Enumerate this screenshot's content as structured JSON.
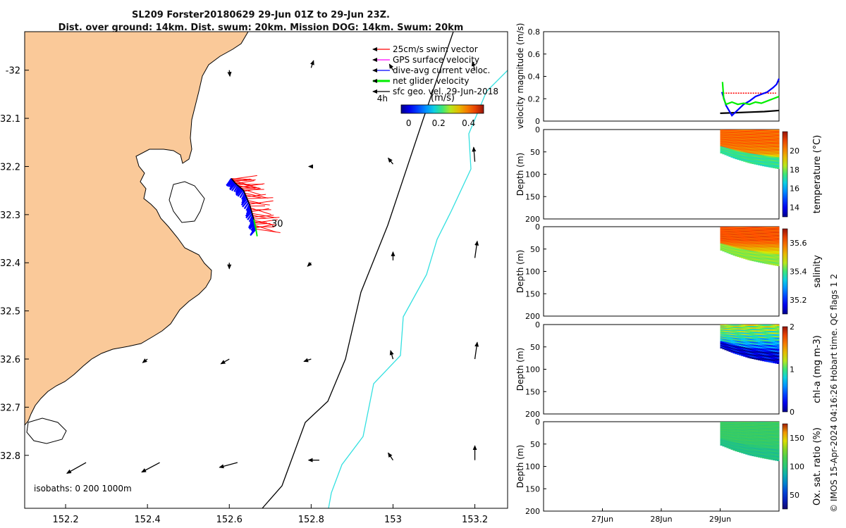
{
  "title": {
    "line1": "SL209 Forster20180629 29-Jun 01Z to 29-Jun 23Z.",
    "line2": "Dist. over ground: 14km. Dist. swum: 20km. Mission DOG: 14km. Swum: 20km"
  },
  "credit": "© IMOS 15-Apr-2024 04:16:26 Hobart time. QC flags 1  2",
  "colors": {
    "land": "#fac999",
    "swim_vector": "#ff0000",
    "gps_velocity": "#ff00ff",
    "current": "#0000ff",
    "net_velocity": "#00ee00",
    "geo_velocity": "#000000",
    "isobath_200": "#000000",
    "isobath_1000": "#33e0e0"
  },
  "chart_data": [
    {
      "id": "map",
      "type": "map",
      "xlim": [
        152.1,
        153.28
      ],
      "ylim": [
        -32.91,
        -31.92
      ],
      "x_ticks": [
        "152.2",
        "152.4",
        "152.6",
        "152.8",
        "153",
        "153.2"
      ],
      "x_tick_values": [
        152.2,
        152.4,
        152.6,
        152.8,
        153.0,
        153.2
      ],
      "y_ticks": [
        "-32",
        "32.1",
        "32.2",
        "32.3",
        "32.4",
        "32.5",
        "32.6",
        "32.7",
        "32.8"
      ],
      "y_tick_values": [
        -32.0,
        -32.1,
        -32.2,
        -32.3,
        -32.4,
        -32.5,
        -32.6,
        -32.7,
        -32.8
      ],
      "legend": [
        {
          "label": "25cm/s swim vector",
          "color": "#ff0000"
        },
        {
          "label": "GPS surface velocity",
          "color": "#ff00ff"
        },
        {
          "label": "dive-avg current veloc.",
          "color": "#0000ff"
        },
        {
          "label": "net glider velocity",
          "color": "#00ee00"
        },
        {
          "label": "sfc geo. vel. 29-Jun-2018",
          "color": "#000000"
        }
      ],
      "duration_label": "4h",
      "colorbar_unit": "(m/s)",
      "colorbar_ticks": [
        "0",
        "0.2",
        "0.4"
      ],
      "colorbar_tick_values": [
        0,
        0.2,
        0.4
      ],
      "colorbar_range": [
        -0.05,
        0.5
      ],
      "annotation": "30",
      "isobaths_label": "isobaths: 0   200  1000m",
      "track": [
        [
          152.605,
          -32.225
        ],
        [
          152.615,
          -32.235
        ],
        [
          152.635,
          -32.25
        ],
        [
          152.65,
          -32.28
        ],
        [
          152.66,
          -32.31
        ],
        [
          152.665,
          -32.33
        ]
      ],
      "geo_arrows": [
        {
          "lon": 152.6,
          "lat": -32.0,
          "u": 0.005,
          "v": -0.05
        },
        {
          "lon": 152.8,
          "lat": -31.995,
          "u": 0.02,
          "v": 0.06
        },
        {
          "lon": 153.0,
          "lat": -32.0,
          "u": -0.03,
          "v": 0.05
        },
        {
          "lon": 153.2,
          "lat": -32.0,
          "u": -0.02,
          "v": 0.07
        },
        {
          "lon": 152.8,
          "lat": -32.2,
          "u": -0.02,
          "v": 0.0
        },
        {
          "lon": 153.0,
          "lat": -32.195,
          "u": -0.04,
          "v": 0.05
        },
        {
          "lon": 153.2,
          "lat": -32.19,
          "u": -0.01,
          "v": 0.12
        },
        {
          "lon": 152.6,
          "lat": -32.4,
          "u": 0.0,
          "v": -0.05
        },
        {
          "lon": 152.8,
          "lat": -32.4,
          "u": -0.03,
          "v": -0.03
        },
        {
          "lon": 153.0,
          "lat": -32.395,
          "u": 0.0,
          "v": 0.07
        },
        {
          "lon": 153.2,
          "lat": -32.39,
          "u": 0.02,
          "v": 0.14
        },
        {
          "lon": 152.4,
          "lat": -32.6,
          "u": -0.04,
          "v": -0.03
        },
        {
          "lon": 152.6,
          "lat": -32.6,
          "u": -0.07,
          "v": -0.04
        },
        {
          "lon": 152.8,
          "lat": -32.6,
          "u": -0.06,
          "v": -0.02
        },
        {
          "lon": 153.0,
          "lat": -32.6,
          "u": -0.02,
          "v": 0.07
        },
        {
          "lon": 153.2,
          "lat": -32.6,
          "u": 0.02,
          "v": 0.14
        },
        {
          "lon": 152.25,
          "lat": -32.815,
          "u": -0.16,
          "v": -0.09
        },
        {
          "lon": 152.43,
          "lat": -32.815,
          "u": -0.15,
          "v": -0.08
        },
        {
          "lon": 152.62,
          "lat": -32.815,
          "u": -0.15,
          "v": -0.04
        },
        {
          "lon": 152.82,
          "lat": -32.81,
          "u": -0.09,
          "v": 0.0
        },
        {
          "lon": 153.0,
          "lat": -32.81,
          "u": -0.04,
          "v": 0.06
        },
        {
          "lon": 153.2,
          "lat": -32.81,
          "u": 0.0,
          "v": 0.12
        }
      ]
    },
    {
      "id": "velocity",
      "type": "line",
      "ylabel": "velocity magnitude (m/s)",
      "ylim": [
        0,
        0.8
      ],
      "y_ticks": [
        "0",
        "0.2",
        "0.4",
        "0.6",
        "0.8"
      ],
      "y_tick_values": [
        0,
        0.2,
        0.4,
        0.6,
        0.8
      ],
      "xlim": [
        26.0,
        30.0
      ],
      "series": [
        {
          "color": "#000000",
          "dashed": false,
          "x": [
            29.0,
            29.25,
            29.5,
            29.75,
            30.0
          ],
          "y": [
            0.07,
            0.075,
            0.08,
            0.085,
            0.095
          ]
        },
        {
          "color": "#ff0000",
          "dashed": true,
          "x": [
            29.05,
            29.3,
            29.5,
            29.75,
            29.95
          ],
          "y": [
            0.25,
            0.25,
            0.25,
            0.25,
            0.25
          ]
        },
        {
          "color": "#0000ff",
          "dashed": false,
          "x": [
            29.03,
            29.1,
            29.2,
            29.3,
            29.4,
            29.5,
            29.6,
            29.7,
            29.8,
            29.9,
            29.96,
            30.0
          ],
          "y": [
            0.26,
            0.14,
            0.05,
            0.1,
            0.15,
            0.18,
            0.22,
            0.24,
            0.26,
            0.3,
            0.33,
            0.38
          ]
        },
        {
          "color": "#00ee00",
          "dashed": false,
          "x": [
            29.04,
            29.06,
            29.1,
            29.2,
            29.3,
            29.4,
            29.5,
            29.6,
            29.7,
            29.8,
            29.9,
            30.0
          ],
          "y": [
            0.35,
            0.2,
            0.15,
            0.17,
            0.15,
            0.16,
            0.15,
            0.17,
            0.16,
            0.18,
            0.2,
            0.22
          ]
        }
      ]
    },
    {
      "id": "temperature",
      "type": "heatmap",
      "ylabel": "Depth (m)",
      "y_ticks": [
        "0",
        "50",
        "100",
        "150",
        "200"
      ],
      "y_tick_values": [
        0,
        50,
        100,
        150,
        200
      ],
      "ylim": [
        0,
        200
      ],
      "colorbar_label": "temperature (°C)",
      "colorbar_ticks": [
        "14",
        "16",
        "18",
        "20"
      ],
      "colorbar_tick_values": [
        14,
        16,
        18,
        20
      ],
      "colorbar_range": [
        13,
        22
      ],
      "x_span": [
        29.0,
        30.0
      ],
      "top_value": 20.5,
      "upper_profile": [
        [
          0,
          20.5
        ],
        [
          30,
          20.5
        ],
        [
          50,
          20.0
        ],
        [
          65,
          18.5
        ],
        [
          80,
          17.5
        ],
        [
          95,
          17.0
        ]
      ],
      "bottom_depth": [
        [
          29.0,
          52
        ],
        [
          29.25,
          65
        ],
        [
          29.5,
          75
        ],
        [
          29.75,
          82
        ],
        [
          30.0,
          88
        ]
      ]
    },
    {
      "id": "salinity",
      "type": "heatmap",
      "ylabel": "Depth (m)",
      "y_ticks": [
        "0",
        "50",
        "100",
        "150",
        "200"
      ],
      "y_tick_values": [
        0,
        50,
        100,
        150,
        200
      ],
      "ylim": [
        0,
        200
      ],
      "colorbar_label": "salinity",
      "colorbar_ticks": [
        "35.2",
        "35.4",
        "35.6"
      ],
      "colorbar_tick_values": [
        35.2,
        35.4,
        35.6
      ],
      "colorbar_range": [
        35.1,
        35.7
      ],
      "x_span": [
        29.0,
        30.0
      ],
      "upper_profile": [
        [
          0,
          35.62
        ],
        [
          30,
          35.62
        ],
        [
          40,
          35.58
        ],
        [
          55,
          35.5
        ],
        [
          70,
          35.45
        ],
        [
          95,
          35.43
        ]
      ],
      "bottom_depth": [
        [
          29.0,
          52
        ],
        [
          29.25,
          65
        ],
        [
          29.5,
          75
        ],
        [
          29.75,
          82
        ],
        [
          30.0,
          88
        ]
      ]
    },
    {
      "id": "chla",
      "type": "heatmap",
      "ylabel": "Depth (m)",
      "y_ticks": [
        "0",
        "50",
        "100",
        "150",
        "200"
      ],
      "y_tick_values": [
        0,
        50,
        100,
        150,
        200
      ],
      "ylim": [
        0,
        200
      ],
      "colorbar_label": "chl-a (mg m-3)",
      "colorbar_ticks": [
        "0",
        "1",
        "2"
      ],
      "colorbar_tick_values": [
        0,
        1,
        2
      ],
      "colorbar_range": [
        0,
        2
      ],
      "x_span": [
        29.0,
        30.0
      ],
      "upper_profile": [
        [
          0,
          1.2
        ],
        [
          20,
          1.0
        ],
        [
          35,
          0.8
        ],
        [
          50,
          0.5
        ],
        [
          65,
          0.2
        ],
        [
          95,
          0.1
        ]
      ],
      "bottom_depth": [
        [
          29.0,
          52
        ],
        [
          29.25,
          65
        ],
        [
          29.5,
          75
        ],
        [
          29.75,
          82
        ],
        [
          30.0,
          88
        ]
      ]
    },
    {
      "id": "oxygen",
      "type": "heatmap",
      "ylabel": "Depth (m)",
      "y_ticks": [
        "0",
        "50",
        "100",
        "150",
        "200"
      ],
      "y_tick_values": [
        0,
        50,
        100,
        150,
        200
      ],
      "ylim": [
        0,
        200
      ],
      "colorbar_label": "Ox. sat. ratio (%)",
      "colorbar_ticks": [
        "50",
        "100",
        "150"
      ],
      "colorbar_tick_values": [
        50,
        100,
        150
      ],
      "colorbar_range": [
        25,
        175
      ],
      "x_span": [
        29.0,
        30.0
      ],
      "upper_profile": [
        [
          0,
          108
        ],
        [
          40,
          106
        ],
        [
          60,
          102
        ],
        [
          75,
          98
        ],
        [
          95,
          96
        ]
      ],
      "bottom_depth": [
        [
          29.0,
          52
        ],
        [
          29.25,
          65
        ],
        [
          29.5,
          75
        ],
        [
          29.75,
          82
        ],
        [
          30.0,
          88
        ]
      ],
      "x_ticks": [
        "27Jun",
        "28Jun",
        "29Jun"
      ],
      "x_tick_values": [
        27.0,
        28.0,
        29.0
      ]
    }
  ]
}
